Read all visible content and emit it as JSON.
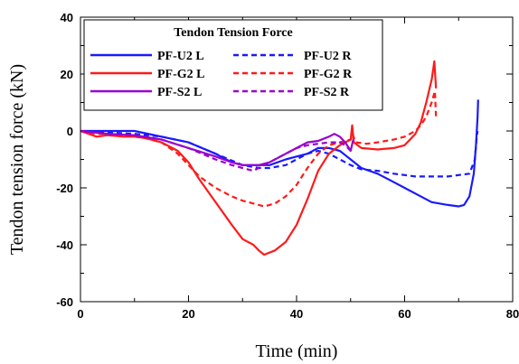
{
  "chart_data": {
    "type": "line",
    "title": "",
    "xlabel": "Time (min)",
    "ylabel": "Tendon tension force (kN)",
    "xlim": [
      0,
      80
    ],
    "ylim": [
      -60,
      40
    ],
    "x_ticks": [
      "0",
      "20",
      "40",
      "60",
      "80"
    ],
    "y_ticks": [
      "-60",
      "-40",
      "-20",
      "0",
      "20",
      "40"
    ],
    "legend": {
      "title": "Tendon Tension Force",
      "placement": "top-left"
    },
    "series": [
      {
        "name": "PF-U2 L",
        "color": "#1a1aff",
        "dash": "solid",
        "points": [
          [
            0,
            0
          ],
          [
            5,
            0
          ],
          [
            10,
            0
          ],
          [
            15,
            -2
          ],
          [
            20,
            -4
          ],
          [
            25,
            -8
          ],
          [
            28,
            -11
          ],
          [
            30,
            -12
          ],
          [
            33,
            -12
          ],
          [
            35,
            -12
          ],
          [
            38,
            -10
          ],
          [
            40,
            -9
          ],
          [
            42,
            -8
          ],
          [
            44,
            -6
          ],
          [
            46,
            -6
          ],
          [
            48,
            -7
          ],
          [
            50,
            -10
          ],
          [
            52,
            -13
          ],
          [
            55,
            -15
          ],
          [
            58,
            -18
          ],
          [
            60,
            -20
          ],
          [
            62,
            -22
          ],
          [
            65,
            -25
          ],
          [
            68,
            -26
          ],
          [
            70,
            -26.5
          ],
          [
            71,
            -26
          ],
          [
            72,
            -23
          ],
          [
            72.8,
            -15
          ],
          [
            73.2,
            -5
          ],
          [
            73.5,
            5
          ],
          [
            73.6,
            11
          ]
        ]
      },
      {
        "name": "PF-U2 R",
        "color": "#1a1aff",
        "dash": "dashed",
        "points": [
          [
            0,
            0
          ],
          [
            5,
            -0.5
          ],
          [
            10,
            -1
          ],
          [
            15,
            -2
          ],
          [
            20,
            -4
          ],
          [
            25,
            -8
          ],
          [
            30,
            -12
          ],
          [
            33,
            -13
          ],
          [
            35,
            -13
          ],
          [
            38,
            -12
          ],
          [
            40,
            -10
          ],
          [
            42,
            -8
          ],
          [
            44,
            -7
          ],
          [
            46,
            -8
          ],
          [
            48,
            -10
          ],
          [
            50,
            -12
          ],
          [
            52,
            -13.5
          ],
          [
            55,
            -14
          ],
          [
            58,
            -15
          ],
          [
            60,
            -15.5
          ],
          [
            62,
            -16
          ],
          [
            65,
            -16
          ],
          [
            68,
            -16
          ],
          [
            70,
            -15.5
          ],
          [
            72,
            -15
          ],
          [
            73,
            -10
          ],
          [
            73.3,
            -3
          ],
          [
            73.5,
            0
          ]
        ]
      },
      {
        "name": "PF-G2 L",
        "color": "#ff1a1a",
        "dash": "solid",
        "points": [
          [
            0,
            0
          ],
          [
            3,
            -2
          ],
          [
            5,
            -1.5
          ],
          [
            8,
            -2
          ],
          [
            10,
            -2
          ],
          [
            12,
            -2.5
          ],
          [
            15,
            -4
          ],
          [
            18,
            -7
          ],
          [
            20,
            -11
          ],
          [
            22,
            -17
          ],
          [
            25,
            -25
          ],
          [
            28,
            -33
          ],
          [
            30,
            -38
          ],
          [
            32,
            -40
          ],
          [
            33,
            -42
          ],
          [
            34,
            -43.5
          ],
          [
            36,
            -42
          ],
          [
            38,
            -39
          ],
          [
            40,
            -33
          ],
          [
            42,
            -24
          ],
          [
            44,
            -14
          ],
          [
            46,
            -8
          ],
          [
            48,
            -5
          ],
          [
            49,
            -4
          ],
          [
            50,
            -3
          ],
          [
            50.3,
            2
          ],
          [
            50.6,
            -4
          ],
          [
            52,
            -6
          ],
          [
            55,
            -6.5
          ],
          [
            58,
            -6
          ],
          [
            60,
            -5
          ],
          [
            61,
            -3
          ],
          [
            62,
            -1
          ],
          [
            63,
            3
          ],
          [
            64,
            10
          ],
          [
            65,
            18
          ],
          [
            65.5,
            24.5
          ],
          [
            65.8,
            15
          ]
        ]
      },
      {
        "name": "PF-G2 R",
        "color": "#ff1a1a",
        "dash": "dashed",
        "points": [
          [
            0,
            0
          ],
          [
            3,
            -1
          ],
          [
            5,
            -1
          ],
          [
            8,
            -1.5
          ],
          [
            10,
            -2
          ],
          [
            12,
            -2.5
          ],
          [
            15,
            -4
          ],
          [
            18,
            -8
          ],
          [
            20,
            -12
          ],
          [
            22,
            -16
          ],
          [
            25,
            -20
          ],
          [
            28,
            -23
          ],
          [
            30,
            -24.5
          ],
          [
            32,
            -25.5
          ],
          [
            34,
            -26.5
          ],
          [
            36,
            -25.5
          ],
          [
            38,
            -23
          ],
          [
            40,
            -19
          ],
          [
            42,
            -13
          ],
          [
            44,
            -8
          ],
          [
            46,
            -5
          ],
          [
            48,
            -4
          ],
          [
            50,
            -3
          ],
          [
            50.3,
            -1
          ],
          [
            51,
            -4
          ],
          [
            53,
            -4.5
          ],
          [
            55,
            -4
          ],
          [
            58,
            -3
          ],
          [
            60,
            -2
          ],
          [
            62,
            0
          ],
          [
            63,
            2
          ],
          [
            64,
            5
          ],
          [
            65,
            10
          ],
          [
            65.6,
            14
          ],
          [
            65.8,
            5
          ]
        ]
      },
      {
        "name": "PF-S2 L",
        "color": "#9900cc",
        "dash": "solid",
        "points": [
          [
            0,
            0
          ],
          [
            5,
            -1
          ],
          [
            10,
            -1.5
          ],
          [
            15,
            -3
          ],
          [
            20,
            -6
          ],
          [
            25,
            -9
          ],
          [
            28,
            -11
          ],
          [
            30,
            -12
          ],
          [
            33,
            -12
          ],
          [
            35,
            -11
          ],
          [
            38,
            -8
          ],
          [
            40,
            -6
          ],
          [
            42,
            -4
          ],
          [
            44,
            -3.5
          ],
          [
            46,
            -2
          ],
          [
            47,
            -1
          ],
          [
            48,
            -2
          ],
          [
            49,
            -4
          ],
          [
            50,
            -7
          ],
          [
            50.5,
            -3
          ]
        ]
      },
      {
        "name": "PF-S2 R",
        "color": "#9900cc",
        "dash": "dashed",
        "points": [
          [
            0,
            0
          ],
          [
            5,
            -1
          ],
          [
            10,
            -1.5
          ],
          [
            15,
            -3
          ],
          [
            20,
            -6
          ],
          [
            25,
            -10
          ],
          [
            28,
            -12
          ],
          [
            30,
            -13
          ],
          [
            32,
            -14
          ],
          [
            34,
            -12
          ],
          [
            36,
            -10
          ],
          [
            38,
            -8
          ],
          [
            40,
            -6
          ],
          [
            42,
            -5
          ],
          [
            44,
            -4.5
          ],
          [
            46,
            -4
          ],
          [
            48,
            -4
          ],
          [
            49,
            -5
          ],
          [
            50,
            -7
          ]
        ]
      }
    ]
  }
}
